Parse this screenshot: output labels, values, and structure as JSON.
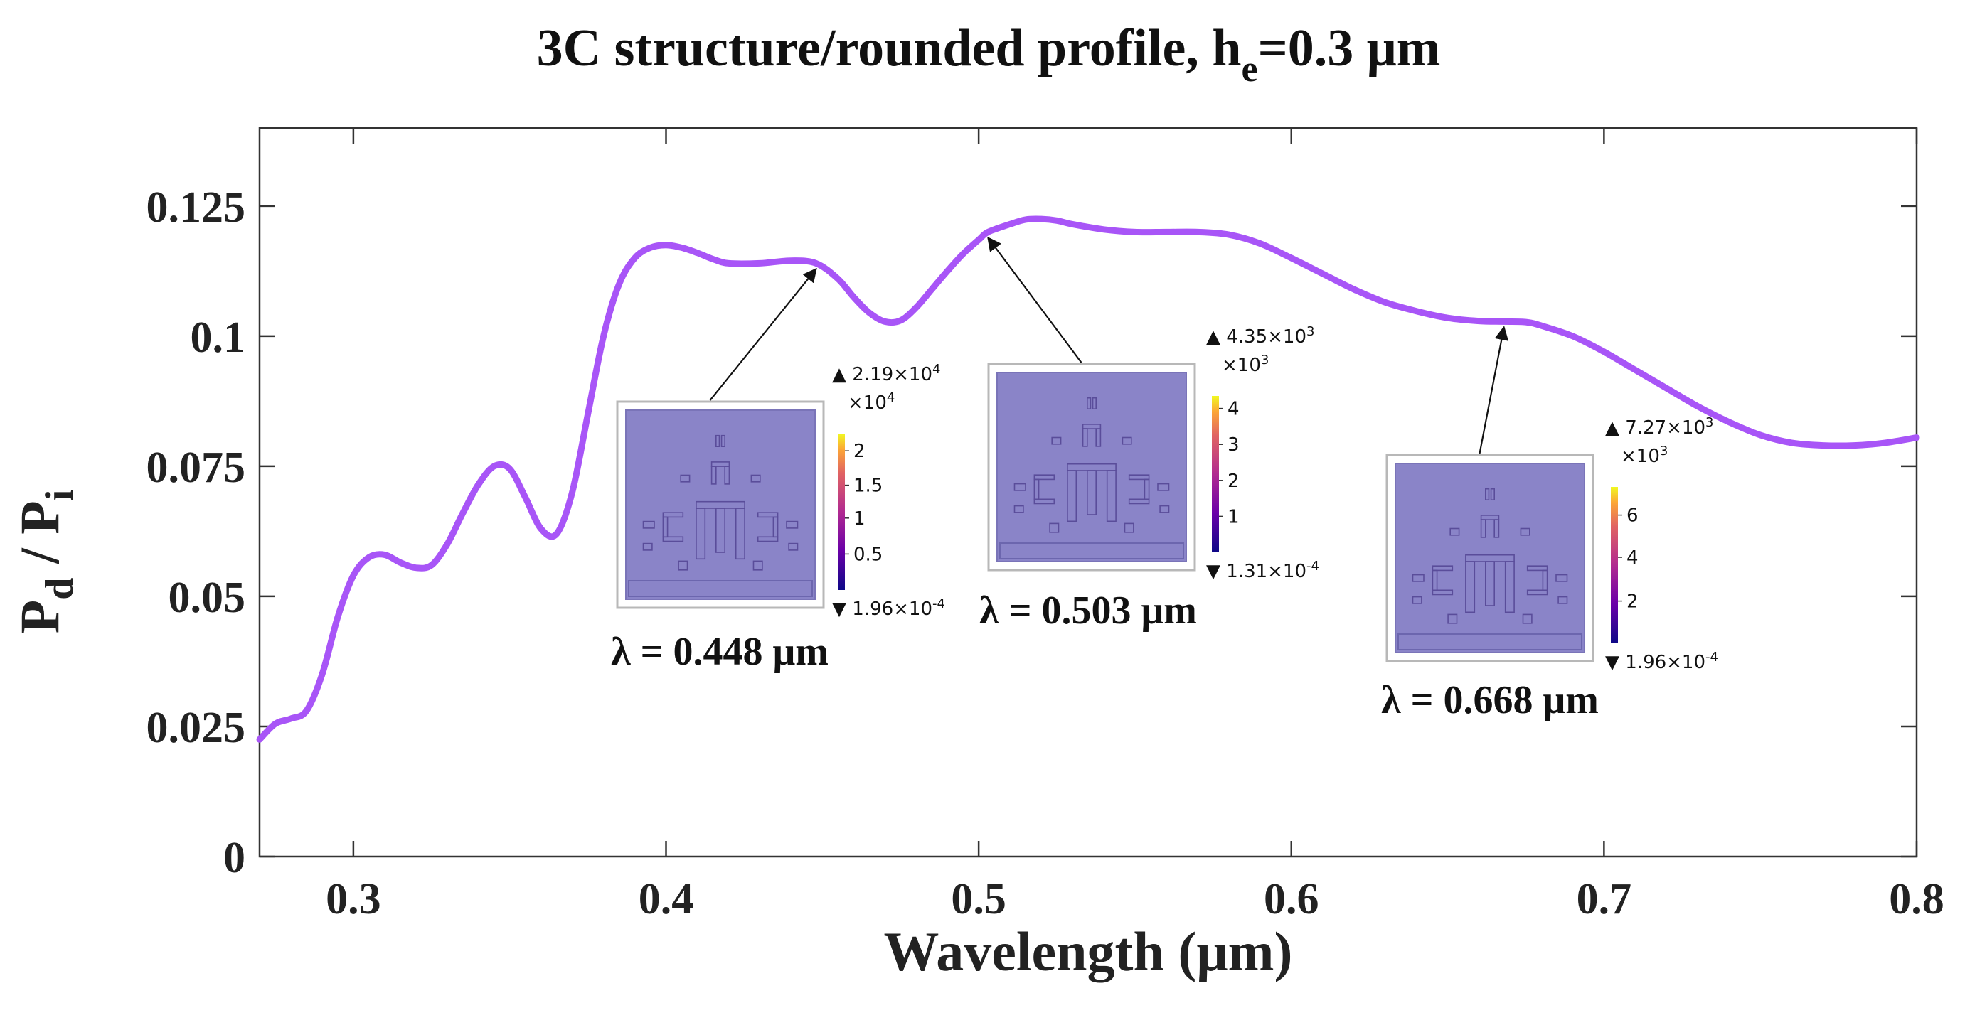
{
  "chart_data": {
    "type": "line",
    "title_main": "3C structure/rounded profile, h",
    "title_sub": "e",
    "title_tail": "=0.3 μm",
    "xlabel": "Wavelength (μm)",
    "ylabel_main_1": "P",
    "ylabel_sub_1": "d",
    "ylabel_sep": " / ",
    "ylabel_main_2": "P",
    "ylabel_sub_2": "i",
    "xlim": [
      0.27,
      0.8
    ],
    "ylim": [
      0,
      0.14
    ],
    "xticks": [
      0.3,
      0.4,
      0.5,
      0.6,
      0.7,
      0.8
    ],
    "xtick_labels": [
      "0.3",
      "0.4",
      "0.5",
      "0.6",
      "0.7",
      "0.8"
    ],
    "yticks": [
      0,
      0.025,
      0.05,
      0.075,
      0.1,
      0.125
    ],
    "ytick_labels": [
      "0",
      "0.025",
      "0.05",
      "0.075",
      "0.1",
      "0.125"
    ],
    "grid": false,
    "line_color": "#a855f7",
    "series": [
      {
        "name": "Pd/Pi",
        "x": [
          0.27,
          0.275,
          0.28,
          0.285,
          0.29,
          0.295,
          0.3,
          0.305,
          0.31,
          0.315,
          0.32,
          0.325,
          0.33,
          0.335,
          0.34,
          0.345,
          0.35,
          0.355,
          0.36,
          0.365,
          0.37,
          0.375,
          0.38,
          0.385,
          0.39,
          0.395,
          0.4,
          0.405,
          0.41,
          0.415,
          0.42,
          0.43,
          0.44,
          0.448,
          0.455,
          0.46,
          0.465,
          0.47,
          0.475,
          0.48,
          0.485,
          0.49,
          0.495,
          0.5,
          0.503,
          0.51,
          0.515,
          0.52,
          0.525,
          0.53,
          0.54,
          0.55,
          0.56,
          0.57,
          0.58,
          0.59,
          0.6,
          0.61,
          0.62,
          0.63,
          0.64,
          0.65,
          0.66,
          0.668,
          0.675,
          0.68,
          0.69,
          0.7,
          0.71,
          0.72,
          0.73,
          0.74,
          0.75,
          0.76,
          0.77,
          0.78,
          0.79,
          0.8
        ],
        "y": [
          0.0225,
          0.0255,
          0.0265,
          0.028,
          0.035,
          0.046,
          0.054,
          0.0575,
          0.058,
          0.0565,
          0.0555,
          0.056,
          0.06,
          0.066,
          0.0715,
          0.075,
          0.0745,
          0.069,
          0.063,
          0.062,
          0.07,
          0.085,
          0.1,
          0.11,
          0.115,
          0.117,
          0.1175,
          0.117,
          0.116,
          0.1148,
          0.114,
          0.114,
          0.1145,
          0.114,
          0.111,
          0.1075,
          0.1045,
          0.1028,
          0.103,
          0.1055,
          0.109,
          0.1125,
          0.1158,
          0.1185,
          0.12,
          0.1215,
          0.1224,
          0.1225,
          0.1222,
          0.1215,
          0.1205,
          0.12,
          0.12,
          0.12,
          0.1195,
          0.1178,
          0.115,
          0.112,
          0.109,
          0.1065,
          0.1048,
          0.1035,
          0.1029,
          0.1028,
          0.1027,
          0.102,
          0.1,
          0.097,
          0.0935,
          0.09,
          0.0865,
          0.0835,
          0.081,
          0.0795,
          0.079,
          0.079,
          0.0795,
          0.0805
        ]
      }
    ],
    "insets": [
      {
        "name": "inset-448",
        "label": "λ = 0.448 μm",
        "target": [
          0.448,
          0.114
        ],
        "cb_top": "▲ 2.19×10",
        "cb_top_exp": "4",
        "cb_scale": "×10",
        "cb_scale_exp": "4",
        "cb_ticks": [
          "2",
          "1.5",
          "1",
          "0.5"
        ],
        "cb_ticks_frac": [
          0.89,
          0.67,
          0.46,
          0.23
        ],
        "cb_bottom": "▼ 1.96×10",
        "cb_bottom_exp": "-4"
      },
      {
        "name": "inset-503",
        "label": "λ = 0.503 μm",
        "target": [
          0.503,
          0.12
        ],
        "cb_top": "▲ 4.35×10",
        "cb_top_exp": "3",
        "cb_scale": "×10",
        "cb_scale_exp": "3",
        "cb_ticks": [
          "4",
          "3",
          "2",
          "1"
        ],
        "cb_ticks_frac": [
          0.92,
          0.69,
          0.46,
          0.23
        ],
        "cb_bottom": "▼ 1.31×10",
        "cb_bottom_exp": "-4"
      },
      {
        "name": "inset-668",
        "label": "λ = 0.668 μm",
        "target": [
          0.668,
          0.1028
        ],
        "cb_top": "▲ 7.27×10",
        "cb_top_exp": "3",
        "cb_scale": "×10",
        "cb_scale_exp": "3",
        "cb_ticks": [
          "6",
          "4",
          "2"
        ],
        "cb_ticks_frac": [
          0.82,
          0.55,
          0.27
        ],
        "cb_bottom": "▼ 1.96×10",
        "cb_bottom_exp": "-4"
      }
    ]
  }
}
